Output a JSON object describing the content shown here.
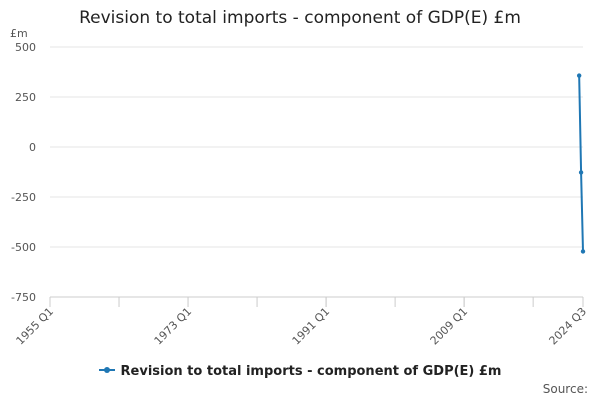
{
  "chart_data": {
    "type": "line",
    "title": "Revision to total imports - component of GDP(E) £m",
    "ylabel": "£m",
    "xlabel": "",
    "ylim": [
      -750,
      500
    ],
    "yticks": [
      500,
      250,
      0,
      -250,
      -500,
      -750
    ],
    "ytick_labels": [
      "500",
      "250",
      "0",
      "-250",
      "-500",
      "-750"
    ],
    "xtick_labels": [
      "1955 Q1",
      "1973 Q1",
      "1991 Q1",
      "2009 Q1",
      "2024 Q3"
    ],
    "grid": true,
    "legend_position": "bottom",
    "series": [
      {
        "name": "Revision to total imports - component of GDP(E) £m",
        "color": "#1f77b4",
        "x": [
          "2024 Q1",
          "2024 Q2",
          "2024 Q3"
        ],
        "values": [
          357,
          -127,
          -522
        ]
      }
    ]
  },
  "source_label": "Source:"
}
